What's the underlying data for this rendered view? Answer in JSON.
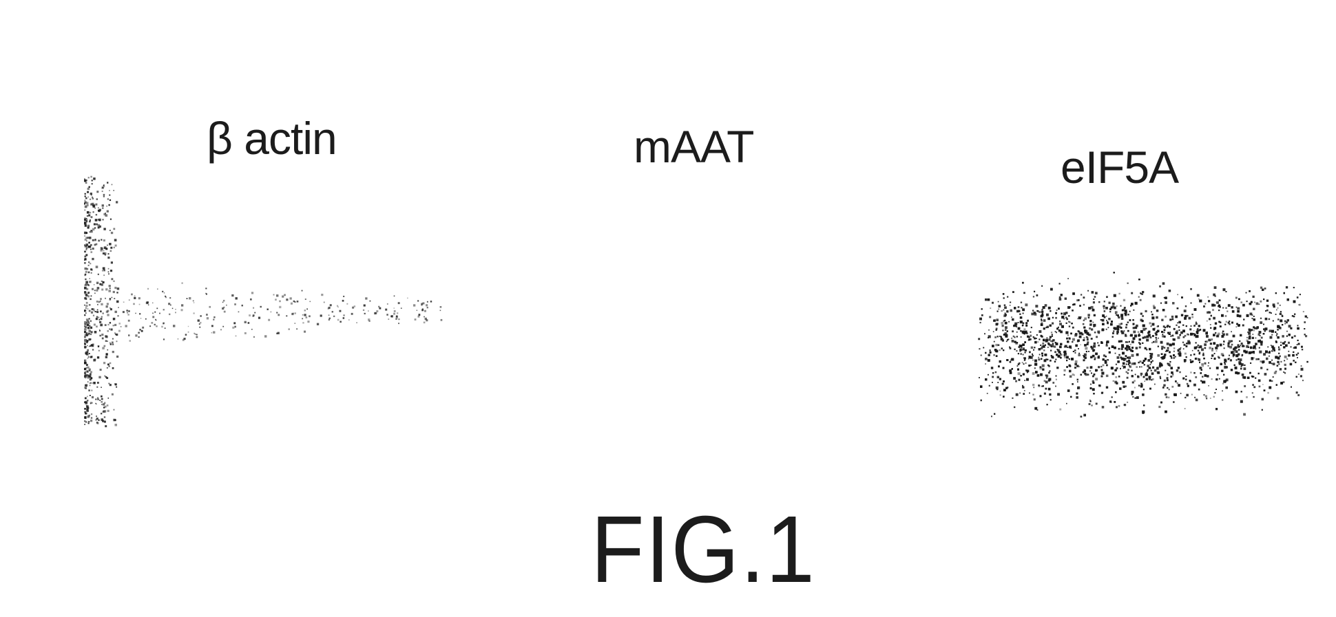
{
  "figure": {
    "lanes": [
      {
        "label": "β actin"
      },
      {
        "label": "mAAT"
      },
      {
        "label": "eIF5A"
      }
    ],
    "caption": "FIG.1"
  }
}
